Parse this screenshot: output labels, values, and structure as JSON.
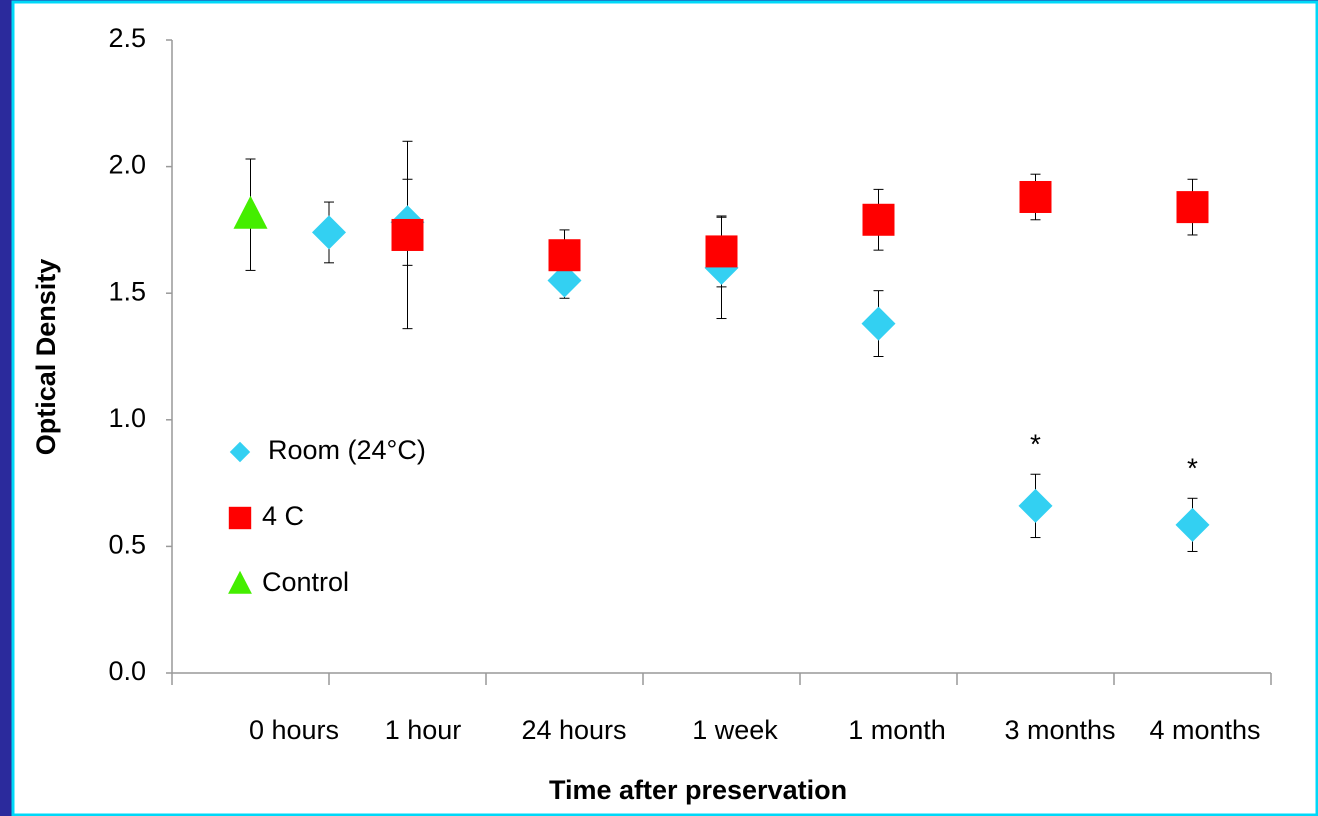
{
  "chart_data": {
    "type": "scatter",
    "y_label": "Optical Density",
    "x_label": "Time after preservation",
    "categories": [
      "0 hours",
      "1 hour",
      "24 hours",
      "1 week",
      "1 month",
      "3 months",
      "4 months"
    ],
    "xlim": [
      0,
      7
    ],
    "xticks": [
      0,
      1,
      2,
      3,
      4,
      5,
      6,
      7
    ],
    "ylim": [
      0,
      2.5
    ],
    "yticks": [
      {
        "value": 0,
        "label": "0.0"
      },
      0.5,
      {
        "value": 1,
        "label": "1.0"
      },
      1.5,
      {
        "value": 2,
        "label": "2.0"
      },
      2.5
    ],
    "legend": "left",
    "series": [
      {
        "name": "Room (24°C)",
        "color": "#33d0f2",
        "marker": "diamond",
        "x": [
          1,
          1.5,
          2.5,
          3.5,
          4.5,
          5.5,
          6.5
        ],
        "values": [
          1.74,
          1.78,
          1.55,
          1.6,
          1.38,
          0.66,
          0.585
        ],
        "errors": [
          0.12,
          0.17,
          0.07,
          0.2,
          0.13,
          0.125,
          0.105
        ]
      },
      {
        "name": "4 C",
        "color": "#ff0000",
        "marker": "square",
        "x": [
          1.5,
          2.5,
          3.5,
          4.5,
          5.5,
          6.5
        ],
        "values": [
          1.73,
          1.65,
          1.665,
          1.79,
          1.88,
          1.84
        ],
        "errors": [
          0.37,
          0.1,
          0.14,
          0.12,
          0.09,
          0.11
        ]
      },
      {
        "name": "Control",
        "color": "#44ee00",
        "marker": "triangle",
        "x": [
          0.5
        ],
        "values": [
          1.81
        ],
        "errors": [
          0.22
        ]
      }
    ],
    "annotations": [
      "*",
      "*"
    ]
  }
}
